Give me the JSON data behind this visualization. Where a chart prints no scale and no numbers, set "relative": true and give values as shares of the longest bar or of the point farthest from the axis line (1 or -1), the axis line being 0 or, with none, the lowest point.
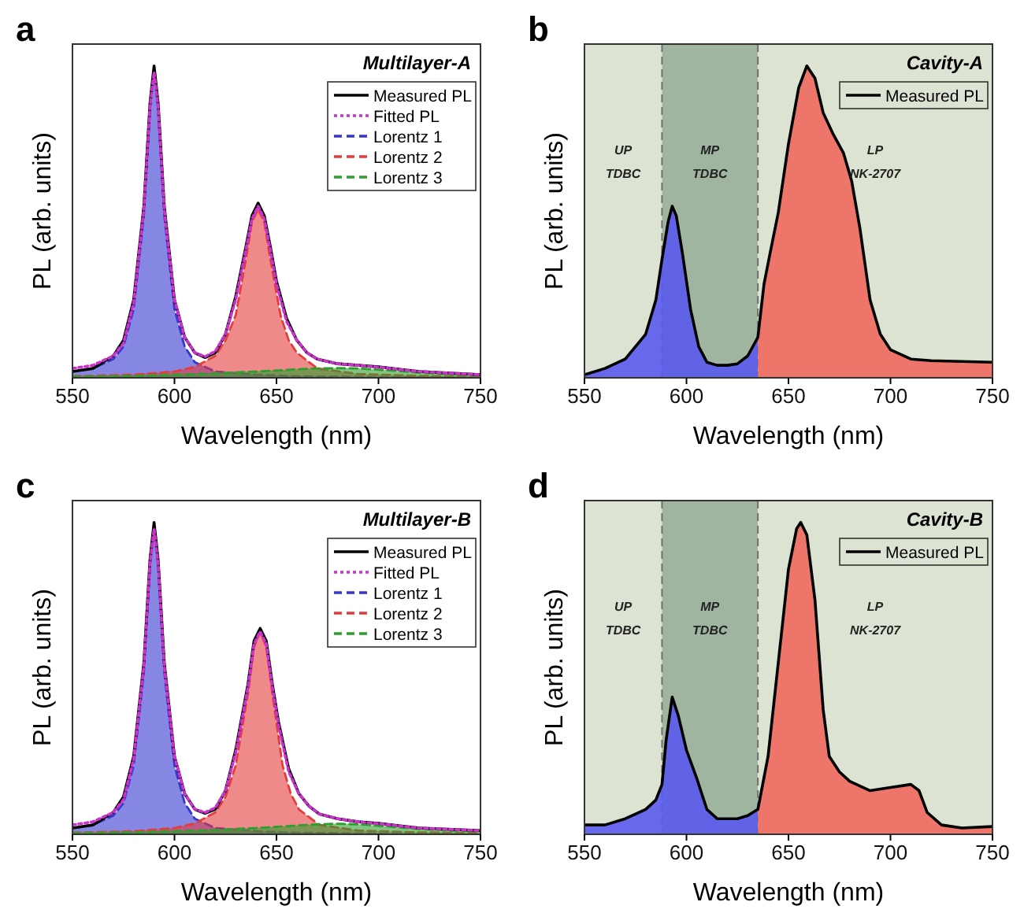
{
  "chart_data": [
    {
      "type": "line",
      "title": "a",
      "subtitle": "Multilayer-A",
      "xlabel": "Wavelength (nm)",
      "ylabel": "PL (arb. units)",
      "relative": true,
      "xlim": [
        550,
        750
      ],
      "xticks": [
        550,
        600,
        650,
        700,
        750
      ],
      "legend": "top right",
      "series": [
        {
          "name": "Lorentz 1",
          "type": "area",
          "line_style": "dashed",
          "color": "#3535d0",
          "x": [
            550,
            560,
            570,
            575,
            580,
            585,
            588,
            590,
            592,
            595,
            600,
            605,
            610,
            620,
            640,
            660,
            700,
            750
          ],
          "values": [
            0.02,
            0.03,
            0.06,
            0.1,
            0.22,
            0.52,
            0.86,
            0.98,
            0.86,
            0.52,
            0.22,
            0.1,
            0.05,
            0.02,
            0.01,
            0.005,
            0.002,
            0
          ]
        },
        {
          "name": "Lorentz 2",
          "type": "area",
          "line_style": "dashed",
          "color": "#e23c3c",
          "x": [
            550,
            580,
            600,
            610,
            620,
            625,
            630,
            635,
            638,
            641,
            644,
            647,
            652,
            656,
            660,
            670,
            690,
            720,
            750
          ],
          "values": [
            0.005,
            0.01,
            0.02,
            0.035,
            0.07,
            0.12,
            0.2,
            0.38,
            0.5,
            0.54,
            0.5,
            0.38,
            0.2,
            0.12,
            0.08,
            0.03,
            0.012,
            0.006,
            0.004
          ]
        },
        {
          "name": "Lorentz 3",
          "type": "area",
          "line_style": "dashed",
          "color": "#2e9e2e",
          "x": [
            550,
            580,
            600,
            620,
            640,
            660,
            670,
            680,
            690,
            705,
            720,
            735,
            750
          ],
          "values": [
            0.004,
            0.006,
            0.01,
            0.014,
            0.02,
            0.027,
            0.03,
            0.031,
            0.03,
            0.024,
            0.016,
            0.012,
            0.01
          ]
        },
        {
          "name": "Measured PL",
          "type": "line",
          "line_style": "solid",
          "color": "#000000",
          "x": [
            550,
            560,
            570,
            575,
            580,
            585,
            588,
            590,
            592,
            595,
            600,
            605,
            610,
            615,
            620,
            625,
            630,
            635,
            638,
            641,
            644,
            647,
            650,
            655,
            660,
            665,
            670,
            680,
            690,
            700,
            720,
            750
          ],
          "values": [
            0.02,
            0.03,
            0.07,
            0.12,
            0.25,
            0.55,
            0.88,
            1,
            0.88,
            0.55,
            0.25,
            0.13,
            0.08,
            0.065,
            0.08,
            0.14,
            0.26,
            0.42,
            0.52,
            0.56,
            0.52,
            0.42,
            0.31,
            0.19,
            0.12,
            0.08,
            0.06,
            0.045,
            0.04,
            0.035,
            0.02,
            0.01
          ]
        },
        {
          "name": "Fitted PL",
          "type": "line",
          "line_style": "dotted",
          "color": "#cc33cc",
          "x": [
            550,
            560,
            570,
            575,
            580,
            585,
            588,
            590,
            592,
            595,
            600,
            605,
            610,
            615,
            620,
            625,
            630,
            635,
            638,
            641,
            644,
            647,
            650,
            655,
            660,
            665,
            670,
            680,
            690,
            700,
            720,
            750
          ],
          "values": [
            0.03,
            0.04,
            0.07,
            0.11,
            0.24,
            0.54,
            0.87,
            0.98,
            0.87,
            0.54,
            0.25,
            0.13,
            0.08,
            0.068,
            0.085,
            0.14,
            0.25,
            0.41,
            0.51,
            0.55,
            0.51,
            0.41,
            0.3,
            0.18,
            0.12,
            0.08,
            0.06,
            0.045,
            0.04,
            0.034,
            0.02,
            0.01
          ]
        }
      ]
    },
    {
      "type": "line",
      "title": "b",
      "subtitle": "Cavity-A",
      "xlabel": "Wavelength (nm)",
      "ylabel": "PL (arb. units)",
      "relative": true,
      "xlim": [
        550,
        750
      ],
      "xticks": [
        550,
        600,
        650,
        700,
        750
      ],
      "legend": "top right",
      "bands": [
        {
          "axis": "x",
          "from": 550,
          "to": 588,
          "label": "UP\nTDBC",
          "color": "#dde3d2"
        },
        {
          "axis": "x",
          "from": 588,
          "to": 635,
          "label": "MP\nTDBC",
          "color": "#9fb5a0"
        },
        {
          "axis": "x",
          "from": 635,
          "to": 750,
          "label": "LP\nNK-2707",
          "color": "#dde3d2"
        }
      ],
      "ref_lines": [
        {
          "axis": "x",
          "value": 588,
          "color": "#707070",
          "line_style": "dashed"
        },
        {
          "axis": "x",
          "value": 635,
          "color": "#707070",
          "line_style": "dashed"
        }
      ],
      "series": [
        {
          "type": "area",
          "color": "#5a5aee",
          "x": [
            550,
            560,
            570,
            580,
            585,
            588,
            591,
            593,
            595,
            598,
            602,
            606,
            610,
            615,
            620,
            625,
            630,
            635
          ],
          "values": [
            0.01,
            0.03,
            0.06,
            0.14,
            0.25,
            0.38,
            0.5,
            0.55,
            0.52,
            0.4,
            0.22,
            0.1,
            0.05,
            0.04,
            0.04,
            0.045,
            0.07,
            0.13
          ]
        },
        {
          "type": "area",
          "color": "#f0685e",
          "x": [
            635,
            638,
            641,
            645,
            650,
            655,
            659,
            663,
            667,
            672,
            677,
            681,
            685,
            690,
            695,
            700,
            710,
            720,
            750
          ],
          "values": [
            0.13,
            0.3,
            0.4,
            0.53,
            0.75,
            0.93,
            1,
            0.96,
            0.85,
            0.78,
            0.72,
            0.63,
            0.48,
            0.25,
            0.14,
            0.09,
            0.06,
            0.055,
            0.05
          ]
        },
        {
          "name": "Measured PL",
          "type": "line",
          "line_style": "solid",
          "color": "#000000",
          "x": [
            550,
            560,
            570,
            580,
            585,
            588,
            591,
            593,
            595,
            598,
            602,
            606,
            610,
            615,
            620,
            625,
            630,
            635,
            638,
            641,
            645,
            650,
            655,
            659,
            663,
            667,
            672,
            677,
            681,
            685,
            690,
            695,
            700,
            710,
            720,
            750
          ],
          "values": [
            0.01,
            0.03,
            0.06,
            0.14,
            0.25,
            0.38,
            0.5,
            0.55,
            0.52,
            0.4,
            0.22,
            0.1,
            0.05,
            0.04,
            0.04,
            0.045,
            0.07,
            0.13,
            0.3,
            0.4,
            0.53,
            0.75,
            0.93,
            1,
            0.96,
            0.85,
            0.78,
            0.72,
            0.63,
            0.48,
            0.25,
            0.14,
            0.09,
            0.06,
            0.055,
            0.05
          ]
        }
      ]
    },
    {
      "type": "line",
      "title": "c",
      "subtitle": "Multilayer-B",
      "xlabel": "Wavelength (nm)",
      "ylabel": "PL (arb. units)",
      "relative": true,
      "xlim": [
        550,
        750
      ],
      "xticks": [
        550,
        600,
        650,
        700,
        750
      ],
      "legend": "top right",
      "series": [
        {
          "name": "Lorentz 1",
          "type": "area",
          "line_style": "dashed",
          "color": "#3535d0",
          "x": [
            550,
            560,
            570,
            575,
            580,
            585,
            588,
            590,
            592,
            595,
            600,
            605,
            610,
            620,
            640,
            660,
            700,
            750
          ],
          "values": [
            0.02,
            0.03,
            0.06,
            0.1,
            0.22,
            0.52,
            0.86,
            0.98,
            0.86,
            0.52,
            0.22,
            0.1,
            0.05,
            0.02,
            0.01,
            0.005,
            0.002,
            0
          ]
        },
        {
          "name": "Lorentz 2",
          "type": "area",
          "line_style": "dashed",
          "color": "#e23c3c",
          "x": [
            550,
            580,
            600,
            610,
            620,
            625,
            630,
            636,
            639,
            642,
            645,
            648,
            653,
            657,
            661,
            671,
            690,
            720,
            750
          ],
          "values": [
            0.005,
            0.01,
            0.02,
            0.035,
            0.07,
            0.12,
            0.22,
            0.45,
            0.6,
            0.65,
            0.6,
            0.45,
            0.22,
            0.13,
            0.08,
            0.03,
            0.012,
            0.006,
            0.004
          ]
        },
        {
          "name": "Lorentz 3",
          "type": "area",
          "line_style": "dashed",
          "color": "#2e9e2e",
          "x": [
            550,
            580,
            600,
            620,
            640,
            660,
            670,
            680,
            690,
            705,
            720,
            735,
            750
          ],
          "values": [
            0.004,
            0.006,
            0.01,
            0.014,
            0.02,
            0.028,
            0.032,
            0.034,
            0.032,
            0.025,
            0.017,
            0.012,
            0.01
          ]
        },
        {
          "name": "Measured PL",
          "type": "line",
          "line_style": "solid",
          "color": "#000000",
          "x": [
            550,
            560,
            570,
            575,
            580,
            585,
            588,
            590,
            592,
            595,
            600,
            605,
            610,
            615,
            620,
            625,
            630,
            636,
            639,
            642,
            645,
            648,
            651,
            656,
            661,
            666,
            671,
            680,
            690,
            700,
            720,
            750
          ],
          "values": [
            0.02,
            0.03,
            0.07,
            0.12,
            0.25,
            0.55,
            0.88,
            1,
            0.88,
            0.55,
            0.25,
            0.13,
            0.08,
            0.067,
            0.08,
            0.14,
            0.27,
            0.48,
            0.62,
            0.66,
            0.62,
            0.48,
            0.36,
            0.21,
            0.13,
            0.09,
            0.065,
            0.05,
            0.04,
            0.035,
            0.02,
            0.012
          ]
        },
        {
          "name": "Fitted PL",
          "type": "line",
          "line_style": "dotted",
          "color": "#cc33cc",
          "x": [
            550,
            560,
            570,
            575,
            580,
            585,
            588,
            590,
            592,
            595,
            600,
            605,
            610,
            615,
            620,
            625,
            630,
            636,
            639,
            642,
            645,
            648,
            651,
            656,
            661,
            666,
            671,
            680,
            690,
            700,
            720,
            750
          ],
          "values": [
            0.03,
            0.04,
            0.07,
            0.11,
            0.24,
            0.54,
            0.87,
            0.98,
            0.87,
            0.54,
            0.25,
            0.13,
            0.08,
            0.07,
            0.085,
            0.14,
            0.26,
            0.47,
            0.61,
            0.65,
            0.61,
            0.47,
            0.35,
            0.2,
            0.13,
            0.09,
            0.065,
            0.05,
            0.04,
            0.034,
            0.02,
            0.012
          ]
        }
      ]
    },
    {
      "type": "line",
      "title": "d",
      "subtitle": "Cavity-B",
      "xlabel": "Wavelength (nm)",
      "ylabel": "PL (arb. units)",
      "relative": true,
      "xlim": [
        550,
        750
      ],
      "xticks": [
        550,
        600,
        650,
        700,
        750
      ],
      "legend": "top right",
      "bands": [
        {
          "axis": "x",
          "from": 550,
          "to": 588,
          "label": "UP\nTDBC",
          "color": "#dde3d2"
        },
        {
          "axis": "x",
          "from": 588,
          "to": 635,
          "label": "MP\nTDBC",
          "color": "#9fb5a0"
        },
        {
          "axis": "x",
          "from": 635,
          "to": 750,
          "label": "LP\nNK-2707",
          "color": "#dde3d2"
        }
      ],
      "ref_lines": [
        {
          "axis": "x",
          "value": 588,
          "color": "#707070",
          "line_style": "dashed"
        },
        {
          "axis": "x",
          "value": 635,
          "color": "#707070",
          "line_style": "dashed"
        }
      ],
      "series": [
        {
          "type": "area",
          "color": "#5a5aee",
          "x": [
            550,
            560,
            570,
            580,
            585,
            588,
            590,
            593,
            596,
            600,
            605,
            610,
            615,
            620,
            625,
            630,
            635
          ],
          "values": [
            0.03,
            0.03,
            0.05,
            0.08,
            0.11,
            0.16,
            0.3,
            0.44,
            0.38,
            0.27,
            0.18,
            0.08,
            0.05,
            0.05,
            0.05,
            0.06,
            0.08
          ]
        },
        {
          "type": "area",
          "color": "#f0685e",
          "x": [
            635,
            640,
            645,
            650,
            654,
            656,
            659,
            663,
            667,
            670,
            675,
            680,
            690,
            700,
            710,
            714,
            718,
            725,
            735,
            750
          ],
          "values": [
            0.08,
            0.25,
            0.55,
            0.85,
            0.98,
            1,
            0.96,
            0.75,
            0.4,
            0.25,
            0.2,
            0.17,
            0.14,
            0.15,
            0.16,
            0.14,
            0.07,
            0.03,
            0.02,
            0.025
          ]
        },
        {
          "name": "Measured PL",
          "type": "line",
          "line_style": "solid",
          "color": "#000000",
          "x": [
            550,
            560,
            570,
            580,
            585,
            588,
            590,
            593,
            596,
            600,
            605,
            610,
            615,
            620,
            625,
            630,
            635,
            640,
            645,
            650,
            654,
            656,
            659,
            663,
            667,
            670,
            675,
            680,
            690,
            700,
            710,
            714,
            718,
            725,
            735,
            750
          ],
          "values": [
            0.03,
            0.03,
            0.05,
            0.08,
            0.11,
            0.16,
            0.3,
            0.44,
            0.38,
            0.27,
            0.18,
            0.08,
            0.05,
            0.05,
            0.05,
            0.06,
            0.08,
            0.25,
            0.55,
            0.85,
            0.98,
            1,
            0.96,
            0.75,
            0.4,
            0.25,
            0.2,
            0.17,
            0.14,
            0.15,
            0.16,
            0.14,
            0.07,
            0.03,
            0.02,
            0.025
          ]
        }
      ]
    }
  ]
}
